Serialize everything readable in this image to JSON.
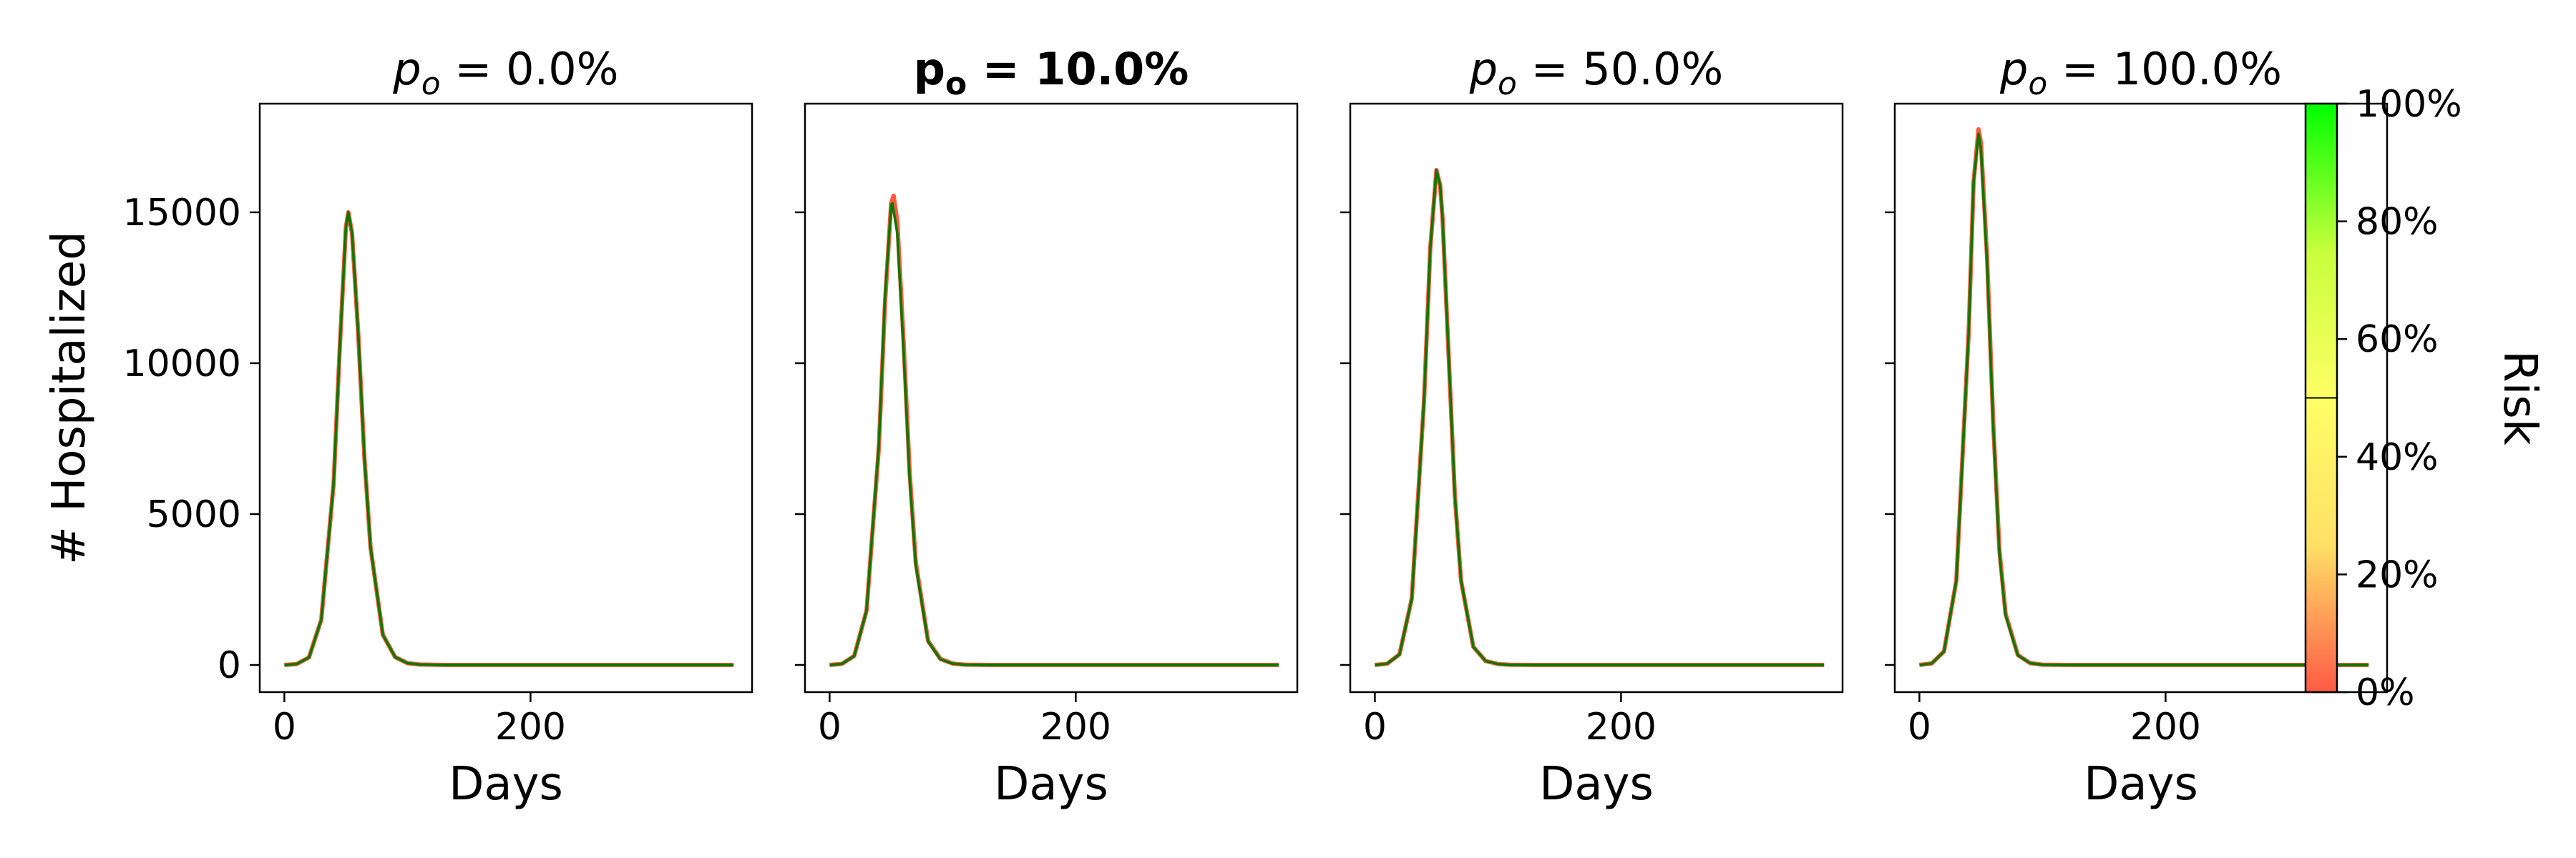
{
  "chart_data": [
    {
      "type": "line",
      "title": "p_o = 0.0%",
      "title_sym": "p",
      "title_sub": "o",
      "title_value": "0.0%",
      "bold_title": false,
      "xlabel": "Days",
      "ylabel": "# Hospitalized",
      "xlim": [
        -20,
        380
      ],
      "ylim": [
        -900,
        18600
      ],
      "xticks": [
        0,
        200
      ],
      "yticks": [
        0,
        5000,
        10000,
        15000
      ],
      "peak_day": 52,
      "peak_value": 15000,
      "series": [
        {
          "color": "#ff5a3c",
          "values": [
            [
              0,
              0
            ],
            [
              10,
              30
            ],
            [
              20,
              250
            ],
            [
              30,
              1500
            ],
            [
              40,
              6000
            ],
            [
              45,
              10500
            ],
            [
              50,
              14500
            ],
            [
              52,
              15000
            ],
            [
              55,
              14300
            ],
            [
              60,
              11000
            ],
            [
              65,
              6900
            ],
            [
              70,
              3900
            ],
            [
              80,
              1000
            ],
            [
              90,
              260
            ],
            [
              100,
              60
            ],
            [
              110,
              15
            ],
            [
              130,
              0
            ],
            [
              200,
              0
            ],
            [
              365,
              0
            ]
          ]
        },
        {
          "color": "#007a00",
          "values": [
            [
              0,
              0
            ],
            [
              10,
              30
            ],
            [
              20,
              250
            ],
            [
              30,
              1500
            ],
            [
              40,
              6000
            ],
            [
              45,
              10500
            ],
            [
              50,
              14500
            ],
            [
              52,
              15000
            ],
            [
              55,
              14300
            ],
            [
              60,
              11000
            ],
            [
              65,
              6900
            ],
            [
              70,
              3900
            ],
            [
              80,
              1000
            ],
            [
              90,
              260
            ],
            [
              100,
              60
            ],
            [
              110,
              15
            ],
            [
              130,
              0
            ],
            [
              200,
              0
            ],
            [
              365,
              0
            ]
          ]
        }
      ]
    },
    {
      "type": "line",
      "title": "p_o = 10.0%",
      "title_sym": "p",
      "title_sub": "o",
      "title_value": "10.0%",
      "bold_title": true,
      "xlabel": "Days",
      "xlim": [
        -20,
        380
      ],
      "ylim": [
        -900,
        18600
      ],
      "xticks": [
        0,
        200
      ],
      "yticks": [
        0,
        5000,
        10000,
        15000
      ],
      "peak_day": 51,
      "peak_value": 15300,
      "series": [
        {
          "color": "#ff5a3c",
          "values": [
            [
              0,
              0
            ],
            [
              10,
              35
            ],
            [
              20,
              300
            ],
            [
              30,
              1800
            ],
            [
              40,
              7200
            ],
            [
              45,
              12000
            ],
            [
              50,
              15300
            ],
            [
              52,
              15550
            ],
            [
              55,
              14700
            ],
            [
              60,
              10800
            ],
            [
              65,
              6400
            ],
            [
              70,
              3400
            ],
            [
              80,
              800
            ],
            [
              90,
              200
            ],
            [
              100,
              45
            ],
            [
              110,
              10
            ],
            [
              130,
              0
            ],
            [
              200,
              0
            ],
            [
              365,
              0
            ]
          ]
        },
        {
          "color": "#007a00",
          "values": [
            [
              0,
              0
            ],
            [
              10,
              35
            ],
            [
              20,
              300
            ],
            [
              30,
              1800
            ],
            [
              40,
              7300
            ],
            [
              45,
              12200
            ],
            [
              50,
              15250
            ],
            [
              51,
              15300
            ],
            [
              55,
              14300
            ],
            [
              60,
              10500
            ],
            [
              65,
              6200
            ],
            [
              70,
              3300
            ],
            [
              80,
              780
            ],
            [
              90,
              190
            ],
            [
              100,
              45
            ],
            [
              110,
              10
            ],
            [
              130,
              0
            ],
            [
              200,
              0
            ],
            [
              365,
              0
            ]
          ]
        }
      ]
    },
    {
      "type": "line",
      "title": "p_o = 50.0%",
      "title_sym": "p",
      "title_sub": "o",
      "title_value": "50.0%",
      "bold_title": false,
      "xlabel": "Days",
      "xlim": [
        -20,
        380
      ],
      "ylim": [
        -900,
        18600
      ],
      "xticks": [
        0,
        200
      ],
      "yticks": [
        0,
        5000,
        10000,
        15000
      ],
      "peak_day": 50,
      "peak_value": 16400,
      "series": [
        {
          "color": "#ff5a3c",
          "values": [
            [
              0,
              0
            ],
            [
              10,
              40
            ],
            [
              20,
              350
            ],
            [
              30,
              2200
            ],
            [
              40,
              8800
            ],
            [
              45,
              13800
            ],
            [
              50,
              16400
            ],
            [
              53,
              15900
            ],
            [
              55,
              14800
            ],
            [
              60,
              10200
            ],
            [
              65,
              5600
            ],
            [
              70,
              2800
            ],
            [
              80,
              600
            ],
            [
              90,
              130
            ],
            [
              100,
              30
            ],
            [
              110,
              5
            ],
            [
              130,
              0
            ],
            [
              200,
              0
            ],
            [
              365,
              0
            ]
          ]
        },
        {
          "color": "#007a00",
          "values": [
            [
              0,
              0
            ],
            [
              10,
              40
            ],
            [
              20,
              350
            ],
            [
              30,
              2200
            ],
            [
              40,
              8800
            ],
            [
              45,
              13800
            ],
            [
              50,
              16400
            ],
            [
              53,
              15900
            ],
            [
              55,
              14800
            ],
            [
              60,
              10200
            ],
            [
              65,
              5600
            ],
            [
              70,
              2800
            ],
            [
              80,
              600
            ],
            [
              90,
              130
            ],
            [
              100,
              30
            ],
            [
              110,
              5
            ],
            [
              130,
              0
            ],
            [
              200,
              0
            ],
            [
              365,
              0
            ]
          ]
        }
      ]
    },
    {
      "type": "line",
      "title": "p_o = 100.0%",
      "title_sym": "p",
      "title_sub": "o",
      "title_value": "100.0%",
      "bold_title": false,
      "xlabel": "Days",
      "xlim": [
        -20,
        380
      ],
      "ylim": [
        -900,
        18600
      ],
      "xticks": [
        0,
        200
      ],
      "yticks": [
        0,
        5000,
        10000,
        15000
      ],
      "peak_day": 48,
      "peak_value": 17600,
      "series": [
        {
          "color": "#ff5a3c",
          "values": [
            [
              0,
              0
            ],
            [
              10,
              50
            ],
            [
              20,
              450
            ],
            [
              30,
              2800
            ],
            [
              40,
              11000
            ],
            [
              44,
              16000
            ],
            [
              48,
              17750
            ],
            [
              50,
              17300
            ],
            [
              55,
              13500
            ],
            [
              60,
              8000
            ],
            [
              65,
              3800
            ],
            [
              70,
              1700
            ],
            [
              80,
              330
            ],
            [
              90,
              60
            ],
            [
              100,
              10
            ],
            [
              120,
              0
            ],
            [
              200,
              0
            ],
            [
              365,
              0
            ]
          ]
        },
        {
          "color": "#007a00",
          "values": [
            [
              0,
              0
            ],
            [
              10,
              50
            ],
            [
              20,
              450
            ],
            [
              30,
              2800
            ],
            [
              40,
              11000
            ],
            [
              44,
              16000
            ],
            [
              48,
              17600
            ],
            [
              50,
              17100
            ],
            [
              55,
              13300
            ],
            [
              60,
              7900
            ],
            [
              65,
              3700
            ],
            [
              70,
              1650
            ],
            [
              80,
              320
            ],
            [
              90,
              60
            ],
            [
              100,
              10
            ],
            [
              120,
              0
            ],
            [
              200,
              0
            ],
            [
              365,
              0
            ]
          ]
        }
      ]
    }
  ],
  "colorbar": {
    "label": "Risk",
    "colors": [
      "#ff5a46",
      "#ffe066",
      "#ffff66",
      "#c8ff3c",
      "#00ff00"
    ],
    "ticks": [
      "0%",
      "20%",
      "40%",
      "60%",
      "80%",
      "100%"
    ],
    "tick_values": [
      0,
      20,
      40,
      60,
      80,
      100
    ],
    "marker_value": 50
  }
}
